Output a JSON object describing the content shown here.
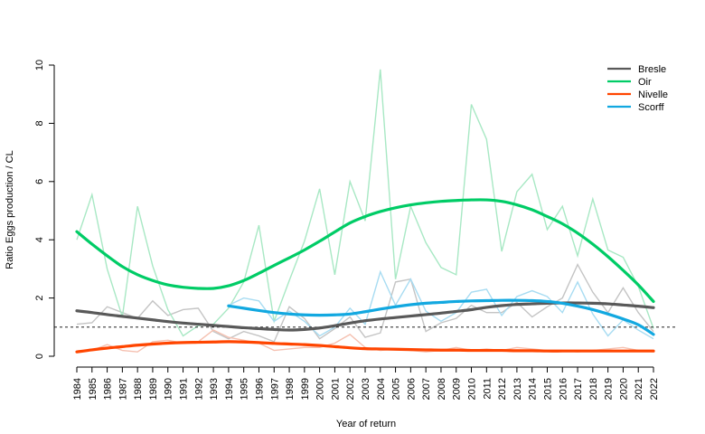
{
  "chart_data": {
    "type": "line",
    "title": "",
    "xlabel": "Year of return",
    "ylabel": "Ratio Eggs production / CL",
    "x": [
      1984,
      1985,
      1986,
      1987,
      1988,
      1989,
      1990,
      1991,
      1992,
      1993,
      1994,
      1995,
      1996,
      1997,
      1998,
      1999,
      2000,
      2001,
      2002,
      2003,
      2004,
      2005,
      2006,
      2007,
      2008,
      2009,
      2010,
      2011,
      2012,
      2013,
      2014,
      2015,
      2016,
      2017,
      2018,
      2019,
      2020,
      2021,
      2022
    ],
    "x_tick_labels": [
      "1984",
      "1985",
      "1986",
      "1987",
      "1988",
      "1989",
      "1990",
      "1991",
      "1992",
      "1993",
      "1994",
      "1995",
      "1996",
      "1997",
      "1998",
      "1999",
      "2000",
      "2001",
      "2002",
      "2003",
      "2004",
      "2005",
      "2006",
      "2007",
      "2008",
      "2009",
      "2010",
      "2011",
      "2012",
      "2013",
      "2014",
      "2015",
      "2016",
      "2017",
      "2018",
      "2019",
      "2020",
      "2021",
      "2022"
    ],
    "ylim": [
      0,
      10
    ],
    "y_ticks": [
      0,
      2,
      4,
      6,
      8,
      10
    ],
    "reference_line": {
      "y": 1,
      "style": "dashed"
    },
    "legend_position": "top-right",
    "series": [
      {
        "name": "Bresle",
        "color": "#595959",
        "raw_color": "#c4c4c4",
        "start_year": 1984,
        "raw": [
          1.1,
          1.15,
          1.7,
          1.5,
          1.3,
          1.9,
          1.4,
          1.6,
          1.65,
          0.85,
          0.6,
          0.85,
          0.7,
          0.5,
          1.7,
          1.3,
          0.6,
          0.95,
          1.35,
          0.65,
          0.8,
          2.55,
          2.65,
          0.85,
          1.15,
          1.3,
          1.75,
          1.5,
          1.5,
          1.85,
          1.35,
          1.7,
          2.0,
          3.15,
          2.2,
          1.5,
          2.35,
          1.5,
          0.85
        ],
        "smooth": [
          1.56,
          1.5,
          1.43,
          1.37,
          1.31,
          1.25,
          1.19,
          1.14,
          1.1,
          1.06,
          1.02,
          0.98,
          0.95,
          0.92,
          0.9,
          0.92,
          0.97,
          1.05,
          1.14,
          1.22,
          1.28,
          1.33,
          1.38,
          1.43,
          1.48,
          1.54,
          1.6,
          1.68,
          1.74,
          1.78,
          1.8,
          1.82,
          1.83,
          1.83,
          1.82,
          1.8,
          1.76,
          1.72,
          1.67
        ]
      },
      {
        "name": "Oir",
        "color": "#00cc66",
        "raw_color": "#a8e8c4",
        "start_year": 1984,
        "raw": [
          4.0,
          5.55,
          3.0,
          1.35,
          5.15,
          3.1,
          1.6,
          0.7,
          1.05,
          1.1,
          1.65,
          2.55,
          4.5,
          1.2,
          2.6,
          3.95,
          5.75,
          2.8,
          6.0,
          4.65,
          9.85,
          2.65,
          5.15,
          3.9,
          3.05,
          2.8,
          8.65,
          7.45,
          3.6,
          5.65,
          6.25,
          4.35,
          5.15,
          3.45,
          5.4,
          3.65,
          3.4,
          2.4,
          0.95
        ],
        "smooth": [
          4.28,
          3.85,
          3.45,
          3.08,
          2.8,
          2.6,
          2.45,
          2.37,
          2.33,
          2.33,
          2.42,
          2.6,
          2.85,
          3.12,
          3.38,
          3.65,
          3.95,
          4.27,
          4.58,
          4.8,
          4.97,
          5.1,
          5.2,
          5.27,
          5.32,
          5.35,
          5.37,
          5.37,
          5.32,
          5.2,
          5.03,
          4.8,
          4.55,
          4.23,
          3.85,
          3.42,
          2.95,
          2.45,
          1.88
        ]
      },
      {
        "name": "Nivelle",
        "color": "#ff4500",
        "raw_color": "#f5c0b0",
        "start_year": 1984,
        "raw": [
          0.15,
          0.2,
          0.4,
          0.2,
          0.15,
          0.5,
          0.55,
          0.45,
          0.5,
          0.9,
          0.65,
          0.55,
          0.45,
          0.2,
          0.25,
          0.3,
          0.3,
          0.45,
          0.75,
          0.3,
          0.2,
          0.25,
          0.2,
          0.15,
          0.2,
          0.3,
          0.2,
          0.25,
          0.2,
          0.3,
          0.25,
          0.2,
          0.2,
          0.15,
          0.2,
          0.25,
          0.3,
          0.2,
          0.15
        ],
        "smooth": [
          0.15,
          0.22,
          0.28,
          0.33,
          0.38,
          0.42,
          0.45,
          0.47,
          0.48,
          0.49,
          0.5,
          0.49,
          0.47,
          0.44,
          0.42,
          0.4,
          0.37,
          0.33,
          0.29,
          0.26,
          0.25,
          0.24,
          0.23,
          0.22,
          0.21,
          0.21,
          0.2,
          0.2,
          0.2,
          0.19,
          0.19,
          0.18,
          0.18,
          0.18,
          0.18,
          0.18,
          0.18,
          0.18,
          0.18
        ]
      },
      {
        "name": "Scorff",
        "color": "#12a8e0",
        "raw_color": "#a8dcf2",
        "start_year": 1994,
        "raw": [
          1.75,
          2.0,
          1.9,
          1.2,
          1.55,
          1.2,
          0.7,
          1.0,
          1.65,
          1.1,
          2.9,
          1.75,
          2.65,
          1.55,
          1.2,
          1.5,
          2.2,
          2.3,
          1.4,
          2.05,
          2.25,
          2.05,
          1.5,
          2.55,
          1.45,
          0.7,
          1.25,
          0.9,
          0.6
        ],
        "smooth": [
          1.73,
          1.65,
          1.57,
          1.5,
          1.45,
          1.42,
          1.41,
          1.42,
          1.45,
          1.53,
          1.62,
          1.7,
          1.77,
          1.82,
          1.85,
          1.88,
          1.9,
          1.91,
          1.92,
          1.92,
          1.91,
          1.88,
          1.82,
          1.72,
          1.6,
          1.45,
          1.28,
          1.08,
          0.75
        ]
      }
    ]
  }
}
